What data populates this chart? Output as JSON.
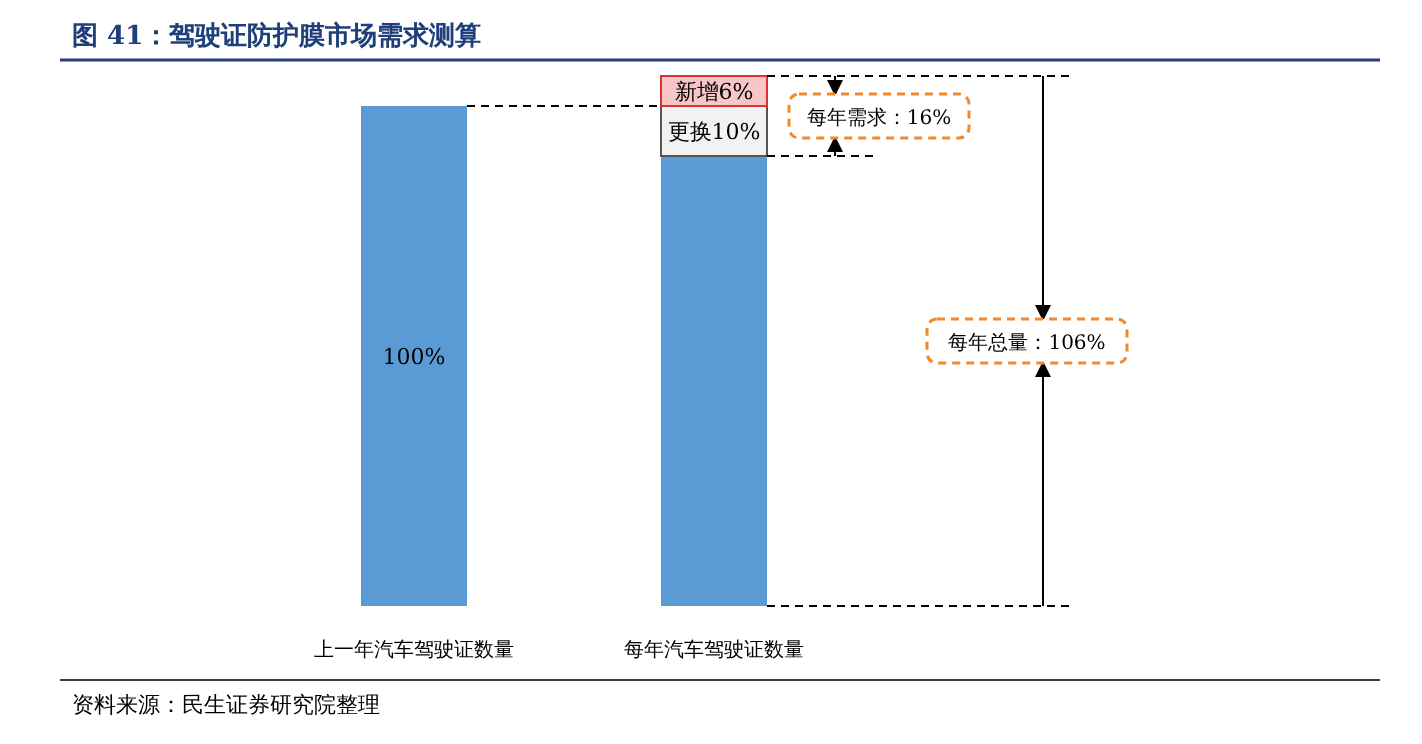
{
  "chart_data": {
    "type": "bar",
    "title": "图 41：驾驶证防护膜市场需求测算",
    "stacked": true,
    "ylim": [
      0,
      106
    ],
    "categories": [
      "上一年汽车驾驶证数量",
      "每年汽车驾驶证数量"
    ],
    "series": [
      {
        "color": "#5b9bd5",
        "values": [
          100,
          90
        ],
        "value_labels": [
          "100%",
          null
        ]
      },
      {
        "color": "#f2f2f2",
        "values": [
          null,
          10
        ],
        "value_labels": [
          null,
          "更换10%"
        ]
      },
      {
        "color": "#f8c6c6",
        "values": [
          null,
          6
        ],
        "value_labels": [
          null,
          "新增6%"
        ]
      }
    ],
    "annotations": [
      "每年需求：16%",
      "每年总量：106%",
      "资料来源：民生证券研究院整理"
    ]
  }
}
